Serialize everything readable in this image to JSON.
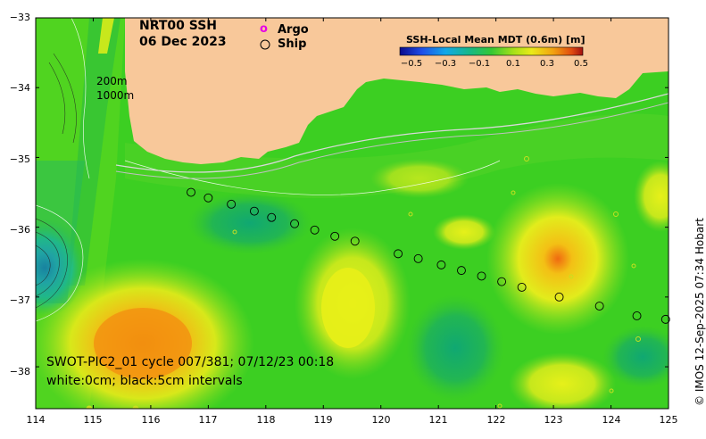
{
  "map": {
    "title_line1": "NRT00 SSH",
    "title_line2": "06 Dec 2023",
    "legend": {
      "argo_symbol": "o",
      "argo_label": "Argo",
      "ship_label": "Ship"
    },
    "colorbar": {
      "title": "SSH-Local Mean MDT (0.6m) [m]",
      "ticks": [
        "−0.5",
        "−0.3",
        "−0.1",
        "0.1",
        "0.3",
        "0.5"
      ]
    },
    "contour_labels": [
      "200m",
      "1000m"
    ],
    "footer": {
      "line1": "SWOT-PIC2_01 cycle 007/381; 07/12/23 00:18",
      "line2": "white:0cm; black:5cm intervals"
    },
    "credit": "© IMOS 12-Sep-2025 07:34 Hobart",
    "x_axis": {
      "ticks": [
        "114",
        "115",
        "116",
        "117",
        "118",
        "119",
        "120",
        "121",
        "122",
        "123",
        "124",
        "125"
      ]
    },
    "y_axis": {
      "ticks": [
        "−33",
        "−34",
        "−35",
        "−36",
        "−37",
        "−38"
      ]
    },
    "colors": {
      "land": "#f8c89a",
      "sea_base": "#3ccf22",
      "warm_anomaly": "#f39a10",
      "cool_anomaly": "#1aa86a",
      "argo": "#e600e6"
    },
    "ship_track": [
      {
        "lon": 116.7,
        "lat": -35.5
      },
      {
        "lon": 117.0,
        "lat": -35.58
      },
      {
        "lon": 117.4,
        "lat": -35.67
      },
      {
        "lon": 117.8,
        "lat": -35.77
      },
      {
        "lon": 118.1,
        "lat": -35.86
      },
      {
        "lon": 118.5,
        "lat": -35.95
      },
      {
        "lon": 118.85,
        "lat": -36.04
      },
      {
        "lon": 119.2,
        "lat": -36.13
      },
      {
        "lon": 119.55,
        "lat": -36.2
      },
      {
        "lon": 120.3,
        "lat": -36.38
      },
      {
        "lon": 120.65,
        "lat": -36.45
      },
      {
        "lon": 121.05,
        "lat": -36.54
      },
      {
        "lon": 121.4,
        "lat": -36.62
      },
      {
        "lon": 121.75,
        "lat": -36.7
      },
      {
        "lon": 122.1,
        "lat": -36.78
      },
      {
        "lon": 122.45,
        "lat": -36.86
      },
      {
        "lon": 123.1,
        "lat": -37.0
      },
      {
        "lon": 123.8,
        "lat": -37.13
      },
      {
        "lon": 124.45,
        "lat": -37.27
      },
      {
        "lon": 124.95,
        "lat": -37.32
      }
    ]
  }
}
